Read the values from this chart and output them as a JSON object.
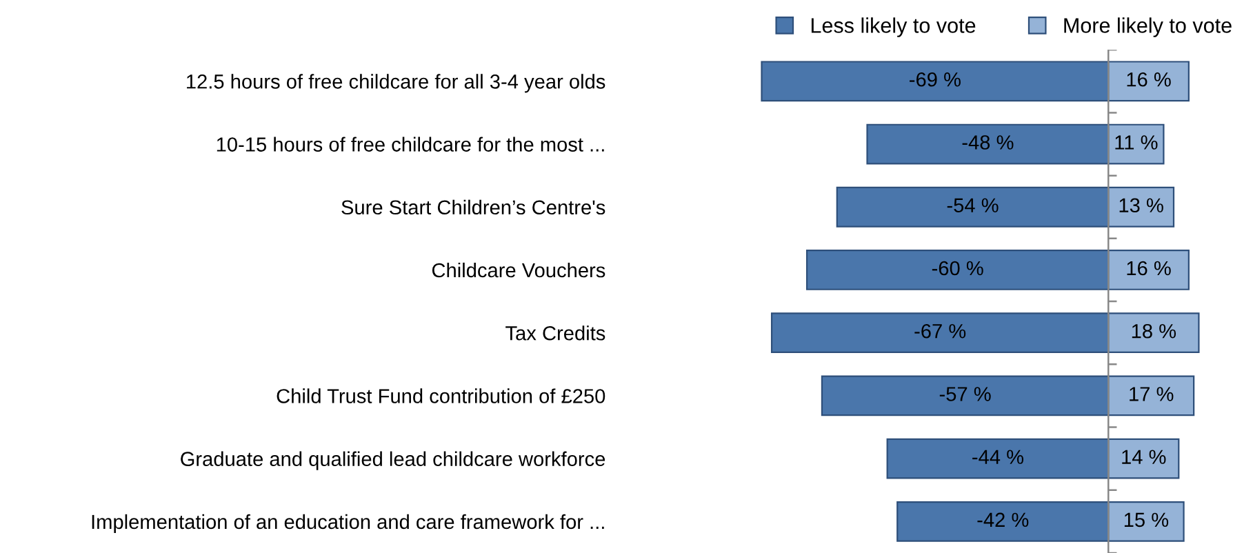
{
  "chart_data": {
    "type": "bar",
    "orientation": "horizontal",
    "stacked": true,
    "categories": [
      "12.5 hours of free childcare for all 3-4 year olds",
      "10-15 hours of free childcare for the most ...",
      "Sure Start Children’s Centre's",
      "Childcare Vouchers",
      "Tax Credits",
      "Child Trust Fund contribution of £250",
      "Graduate and qualified lead childcare workforce",
      "Implementation of an education and care framework for ..."
    ],
    "series": [
      {
        "name": "Less likely to vote",
        "color": "#4a76ab",
        "values": [
          -69,
          -48,
          -54,
          -60,
          -67,
          -57,
          -44,
          -42
        ],
        "value_labels": [
          "-69 %",
          "-48 %",
          "-54 %",
          "-60 %",
          "-67 %",
          "-57 %",
          "-44 %",
          "-42 %"
        ]
      },
      {
        "name": "More likely to vote",
        "color": "#95b3d7",
        "values": [
          16,
          11,
          13,
          16,
          18,
          17,
          14,
          15
        ],
        "value_labels": [
          "16 %",
          "11 %",
          "13 %",
          "16 %",
          "18 %",
          "17 %",
          "14 %",
          "15 %"
        ]
      }
    ],
    "legend": "top",
    "grid": false
  }
}
